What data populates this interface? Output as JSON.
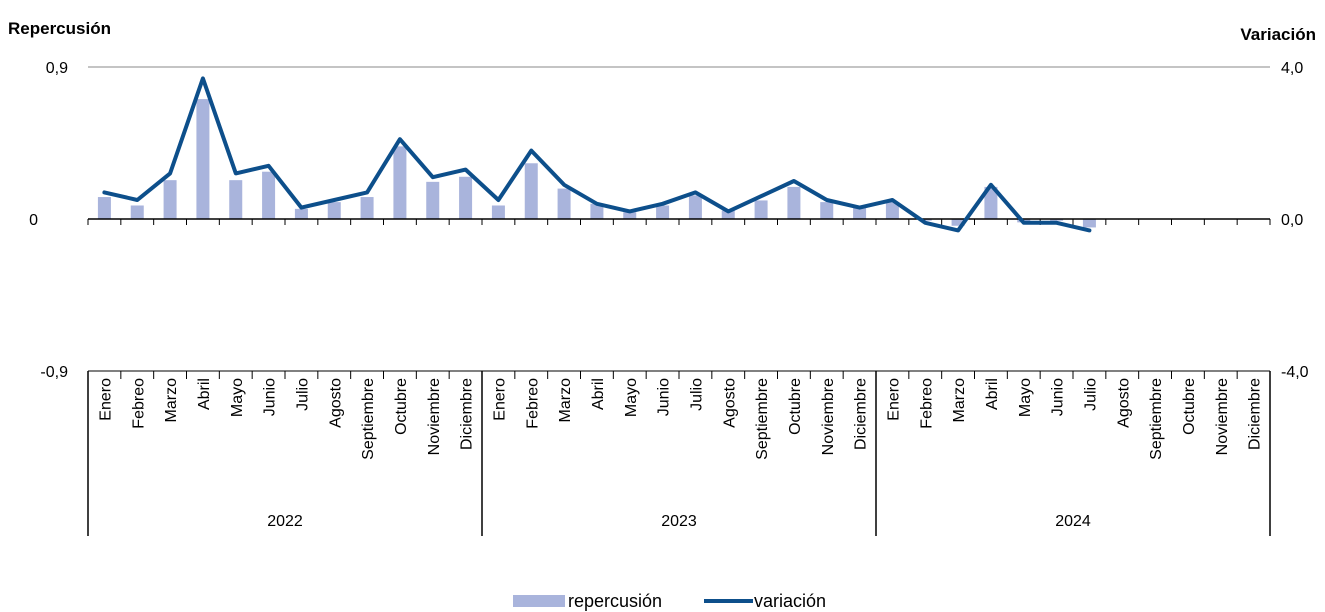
{
  "chart_data": {
    "type": "bar+line",
    "y_left_title": "Repercusión",
    "y_right_title": "Variación",
    "y_left_ticks": [
      "0,9",
      "0",
      "-0,9"
    ],
    "y_right_ticks": [
      "4,0",
      "0,0",
      "-4,0"
    ],
    "ylim_left": [
      -0.9,
      0.9
    ],
    "ylim_right": [
      -4.0,
      4.0
    ],
    "months": [
      "Enero",
      "Febreo",
      "Marzo",
      "Abril",
      "Mayo",
      "Junio",
      "Julio",
      "Agosto",
      "Septiembre",
      "Octubre",
      "Noviembre",
      "Diciembre",
      "Enero",
      "Febreo",
      "Marzo",
      "Abril",
      "Mayo",
      "Junio",
      "Julio",
      "Agosto",
      "Septiembre",
      "Octubre",
      "Noviembre",
      "Diciembre",
      "Enero",
      "Febreo",
      "Marzo",
      "Abril",
      "Mayo",
      "Junio",
      "Julio",
      "Agosto",
      "Septiembre",
      "Octubre",
      "Noviembre",
      "Diciembre"
    ],
    "years": [
      "2022",
      "2023",
      "2024"
    ],
    "series": [
      {
        "name": "repercusión",
        "type": "bar",
        "axis": "left",
        "color": "#a9b4dc",
        "values": [
          0.13,
          0.08,
          0.23,
          0.71,
          0.23,
          0.28,
          0.06,
          0.1,
          0.13,
          0.43,
          0.22,
          0.25,
          0.08,
          0.33,
          0.18,
          0.09,
          0.04,
          0.08,
          0.14,
          0.05,
          0.11,
          0.19,
          0.1,
          0.08,
          0.1,
          -0.01,
          -0.04,
          0.19,
          -0.02,
          -0.01,
          -0.05,
          null,
          null,
          null,
          null,
          null
        ]
      },
      {
        "name": "variación",
        "type": "line",
        "axis": "right",
        "color": "#0d4f8b",
        "values": [
          0.7,
          0.5,
          1.2,
          3.7,
          1.2,
          1.4,
          0.3,
          0.5,
          0.7,
          2.1,
          1.1,
          1.3,
          0.5,
          1.8,
          0.9,
          0.4,
          0.2,
          0.4,
          0.7,
          0.2,
          0.6,
          1.0,
          0.5,
          0.3,
          0.5,
          -0.1,
          -0.3,
          0.9,
          -0.1,
          -0.1,
          -0.3,
          null,
          null,
          null,
          null,
          null
        ]
      }
    ],
    "legend_position": "bottom-center"
  }
}
